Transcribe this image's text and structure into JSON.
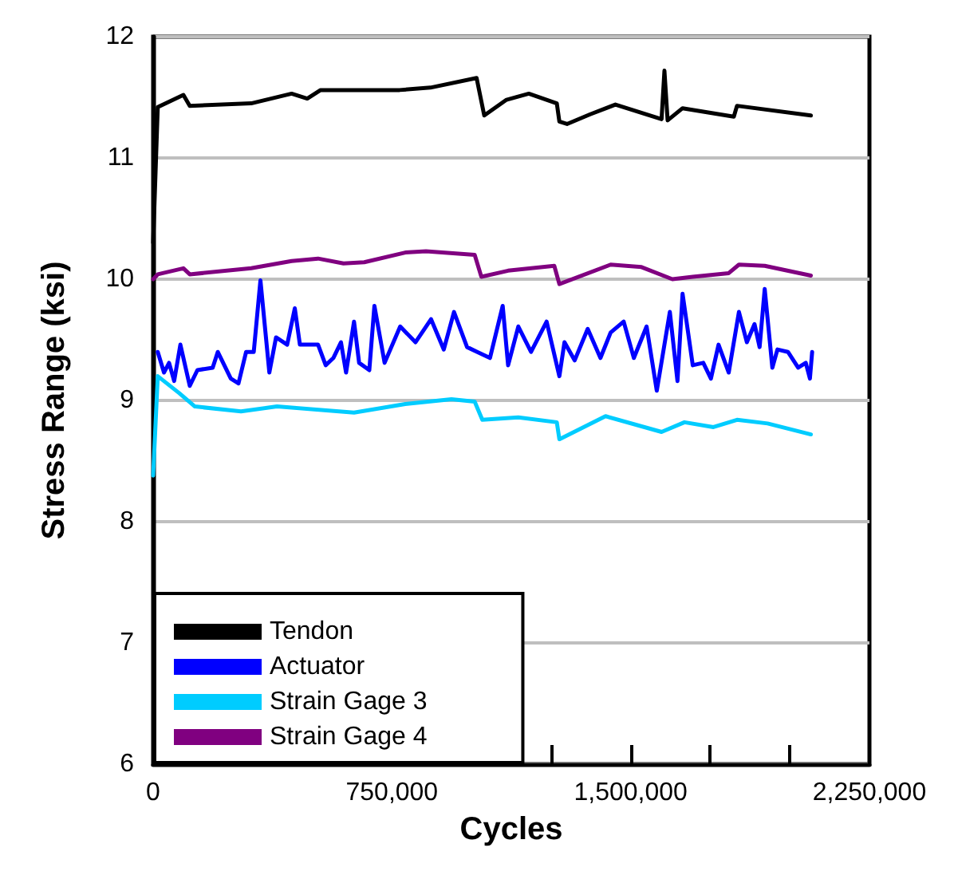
{
  "chart_data": {
    "type": "line",
    "xlabel": "Cycles",
    "ylabel": "Stress Range (ksi)",
    "xlim": [
      0,
      2250000
    ],
    "ylim": [
      6,
      12
    ],
    "xticks": [
      0,
      {
        "value": 250000,
        "label": null
      },
      {
        "value": 500000,
        "label": null
      },
      {
        "value": 750000,
        "label": "750,000"
      },
      {
        "value": 1000000,
        "label": null
      },
      {
        "value": 1250000,
        "label": null
      },
      {
        "value": 1500000,
        "label": "1,500,000"
      },
      {
        "value": 1750000,
        "label": null
      },
      {
        "value": 2000000,
        "label": null
      },
      {
        "value": 2250000,
        "label": "2,250,000"
      }
    ],
    "yticks": [
      6,
      7,
      8,
      9,
      10,
      11,
      12
    ],
    "grid": "y",
    "legend": "bottom left",
    "marker": "none",
    "line_style": "solid",
    "series": [
      {
        "name": "Tendon",
        "color": "#000000",
        "x": [
          0,
          14500,
          95000,
          115000,
          308000,
          435000,
          484000,
          526000,
          774000,
          871000,
          1016000,
          1040000,
          1110000,
          1180000,
          1268000,
          1276000,
          1300000,
          1373000,
          1452000,
          1597000,
          1606000,
          1616000,
          1663000,
          1824000,
          1834000,
          2066000
        ],
        "values": [
          10.3,
          11.42,
          11.52,
          11.43,
          11.45,
          11.53,
          11.49,
          11.56,
          11.56,
          11.58,
          11.66,
          11.35,
          11.48,
          11.53,
          11.45,
          11.3,
          11.28,
          11.36,
          11.44,
          11.32,
          11.72,
          11.31,
          11.41,
          11.34,
          11.43,
          11.35
        ]
      },
      {
        "name": "Actuator",
        "color": "#0000ff",
        "x": [
          14500,
          34000,
          50000,
          66000,
          85500,
          115000,
          139000,
          187000,
          203000,
          244000,
          268000,
          292000,
          316000,
          337000,
          365000,
          386000,
          421000,
          445000,
          461000,
          518000,
          542000,
          566000,
          590000,
          606000,
          631000,
          647000,
          679000,
          695000,
          727000,
          776000,
          824000,
          873000,
          913000,
          945000,
          986000,
          1018000,
          1058000,
          1098000,
          1115000,
          1147000,
          1187000,
          1236000,
          1276000,
          1292000,
          1324000,
          1365000,
          1405000,
          1437000,
          1478000,
          1510000,
          1550000,
          1582000,
          1623000,
          1647000,
          1663000,
          1695000,
          1728000,
          1752000,
          1776000,
          1808000,
          1840000,
          1865000,
          1889000,
          1905000,
          1921000,
          1945000,
          1961000,
          1994000,
          2026000,
          2050000,
          2063000,
          2070000
        ],
        "values": [
          9.4,
          9.23,
          9.31,
          9.16,
          9.46,
          9.12,
          9.25,
          9.27,
          9.4,
          9.18,
          9.14,
          9.4,
          9.4,
          9.99,
          9.23,
          9.52,
          9.46,
          9.76,
          9.46,
          9.46,
          9.29,
          9.35,
          9.48,
          9.23,
          9.65,
          9.31,
          9.25,
          9.78,
          9.31,
          9.61,
          9.48,
          9.67,
          9.42,
          9.73,
          9.44,
          9.4,
          9.35,
          9.78,
          9.29,
          9.61,
          9.4,
          9.65,
          9.2,
          9.48,
          9.33,
          9.59,
          9.35,
          9.56,
          9.65,
          9.35,
          9.61,
          9.08,
          9.73,
          9.16,
          9.88,
          9.29,
          9.31,
          9.18,
          9.46,
          9.23,
          9.73,
          9.48,
          9.63,
          9.44,
          9.92,
          9.27,
          9.42,
          9.4,
          9.27,
          9.31,
          9.18,
          9.4
        ]
      },
      {
        "name": "Strain Gage 3",
        "color": "#00ccff",
        "x": [
          0,
          14500,
          82000,
          131000,
          276000,
          389000,
          631000,
          792000,
          937000,
          1010000,
          1034000,
          1147000,
          1268000,
          1276000,
          1421000,
          1597000,
          1669000,
          1760000,
          1834000,
          1930000,
          2066000
        ],
        "values": [
          8.38,
          9.2,
          9.06,
          8.95,
          8.91,
          8.95,
          8.9,
          8.97,
          9.01,
          8.99,
          8.84,
          8.86,
          8.82,
          8.68,
          8.87,
          8.74,
          8.82,
          8.78,
          8.84,
          8.81,
          8.72
        ]
      },
      {
        "name": "Strain Gage 4",
        "color": "#800080",
        "x": [
          0,
          14500,
          95000,
          115000,
          308000,
          435000,
          518000,
          598000,
          663000,
          792000,
          857000,
          1010000,
          1031000,
          1115000,
          1260000,
          1276000,
          1437000,
          1534000,
          1631000,
          1695000,
          1808000,
          1840000,
          1921000,
          2066000
        ],
        "values": [
          10.0,
          10.04,
          10.09,
          10.04,
          10.09,
          10.15,
          10.17,
          10.13,
          10.14,
          10.22,
          10.23,
          10.2,
          10.02,
          10.07,
          10.11,
          9.96,
          10.12,
          10.1,
          10.0,
          10.02,
          10.05,
          10.12,
          10.11,
          10.03
        ]
      }
    ]
  }
}
